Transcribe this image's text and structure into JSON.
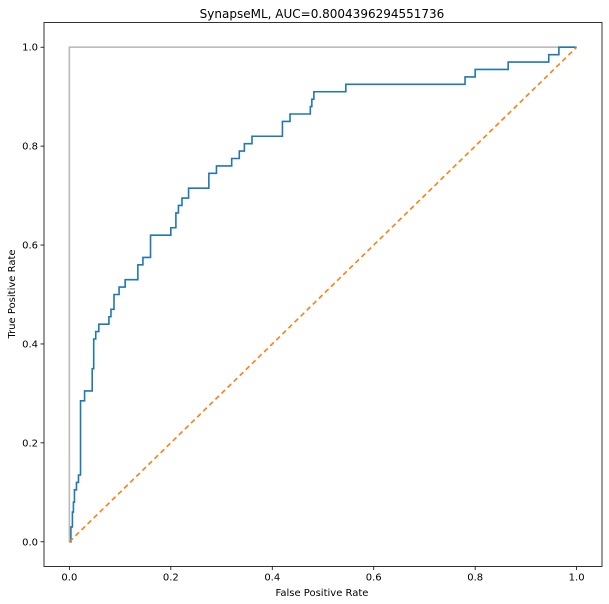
{
  "chart_data": {
    "type": "line",
    "title": "SynapseML, AUC=0.8004396294551736",
    "xlabel": "False Positive Rate",
    "ylabel": "True Positive Rate",
    "xlim": [
      -0.05,
      1.05
    ],
    "ylim": [
      -0.05,
      1.05
    ],
    "xticks": [
      0.0,
      0.2,
      0.4,
      0.6,
      0.8,
      1.0
    ],
    "yticks": [
      0.0,
      0.2,
      0.4,
      0.6,
      0.8,
      1.0
    ],
    "xtick_labels": [
      "0.0",
      "0.2",
      "0.4",
      "0.6",
      "0.8",
      "1.0"
    ],
    "ytick_labels": [
      "0.0",
      "0.2",
      "0.4",
      "0.6",
      "0.8",
      "1.0"
    ],
    "grid": false,
    "series": [
      {
        "color": "#bbbbbb",
        "style": "solid",
        "x": [
          0.0,
          0.0,
          1.0
        ],
        "y": [
          0.0,
          1.0,
          1.0
        ]
      },
      {
        "color": "#1f77b4",
        "style": "step",
        "x": [
          0.0,
          0.003,
          0.003,
          0.006,
          0.006,
          0.008,
          0.008,
          0.01,
          0.01,
          0.014,
          0.014,
          0.018,
          0.018,
          0.022,
          0.022,
          0.03,
          0.03,
          0.045,
          0.045,
          0.048,
          0.048,
          0.052,
          0.052,
          0.058,
          0.058,
          0.078,
          0.078,
          0.082,
          0.082,
          0.088,
          0.088,
          0.098,
          0.098,
          0.11,
          0.11,
          0.135,
          0.135,
          0.145,
          0.145,
          0.16,
          0.16,
          0.2,
          0.2,
          0.21,
          0.21,
          0.215,
          0.215,
          0.222,
          0.222,
          0.235,
          0.235,
          0.275,
          0.275,
          0.29,
          0.29,
          0.32,
          0.32,
          0.335,
          0.335,
          0.345,
          0.345,
          0.36,
          0.36,
          0.42,
          0.42,
          0.435,
          0.435,
          0.475,
          0.475,
          0.478,
          0.478,
          0.482,
          0.482,
          0.545,
          0.545,
          0.78,
          0.78,
          0.8,
          0.8,
          0.865,
          0.865,
          0.945,
          0.945,
          0.965,
          0.965,
          1.0
        ],
        "y": [
          0.0,
          0.0,
          0.03,
          0.03,
          0.06,
          0.06,
          0.08,
          0.08,
          0.105,
          0.105,
          0.12,
          0.12,
          0.135,
          0.135,
          0.285,
          0.285,
          0.305,
          0.305,
          0.35,
          0.35,
          0.41,
          0.41,
          0.425,
          0.425,
          0.44,
          0.44,
          0.455,
          0.455,
          0.47,
          0.47,
          0.5,
          0.5,
          0.515,
          0.515,
          0.53,
          0.53,
          0.56,
          0.56,
          0.575,
          0.575,
          0.62,
          0.62,
          0.635,
          0.635,
          0.665,
          0.665,
          0.68,
          0.68,
          0.695,
          0.695,
          0.715,
          0.715,
          0.745,
          0.745,
          0.76,
          0.76,
          0.775,
          0.775,
          0.79,
          0.79,
          0.805,
          0.805,
          0.82,
          0.82,
          0.85,
          0.85,
          0.865,
          0.865,
          0.88,
          0.88,
          0.895,
          0.895,
          0.91,
          0.91,
          0.925,
          0.925,
          0.94,
          0.94,
          0.955,
          0.955,
          0.97,
          0.97,
          0.985,
          0.985,
          1.0,
          1.0
        ]
      },
      {
        "color": "#ff7f0e",
        "style": "dashed",
        "x": [
          0.0,
          1.0
        ],
        "y": [
          0.0,
          1.0
        ]
      }
    ]
  }
}
